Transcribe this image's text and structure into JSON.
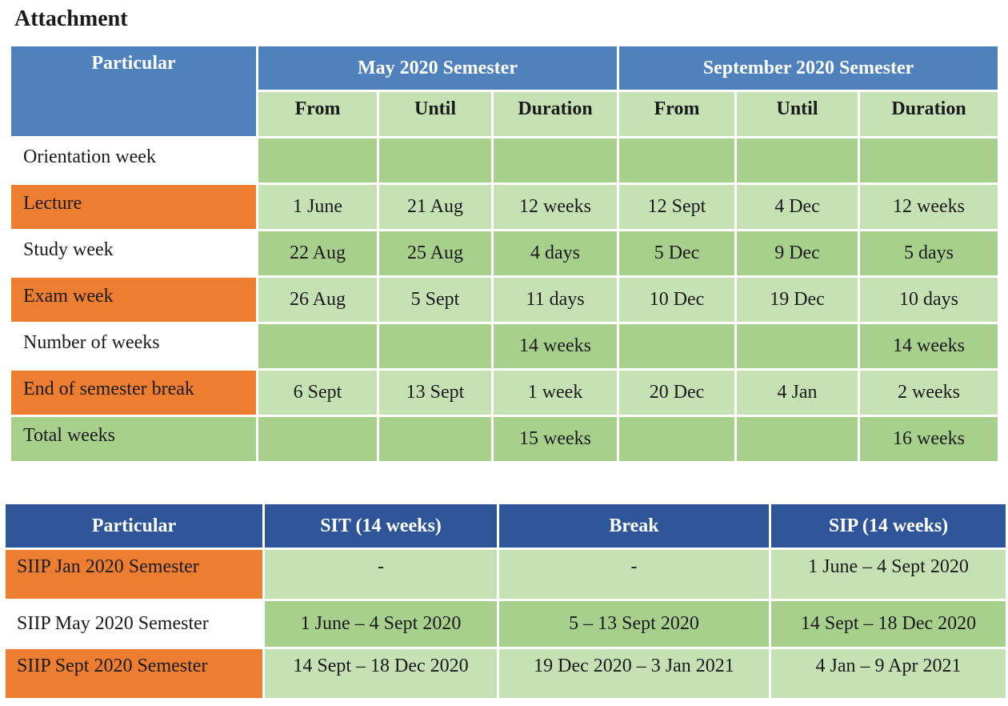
{
  "title": "Attachment",
  "table1": {
    "header": {
      "particular": "Particular",
      "may_semester": "May 2020 Semester",
      "sept_semester": "September 2020 Semester",
      "sub": [
        "From",
        "Until",
        "Duration",
        "From",
        "Until",
        "Duration"
      ]
    },
    "rows": [
      {
        "label": "Orientation week",
        "cells": [
          "",
          "",
          "",
          "",
          "",
          ""
        ]
      },
      {
        "label": "Lecture",
        "cells": [
          "1 June",
          "21 Aug",
          "12 weeks",
          "12 Sept",
          "4 Dec",
          "12 weeks"
        ]
      },
      {
        "label": "Study week",
        "cells": [
          "22 Aug",
          "25 Aug",
          "4 days",
          "5 Dec",
          "9 Dec",
          "5 days"
        ]
      },
      {
        "label": "Exam week",
        "cells": [
          "26 Aug",
          "5 Sept",
          "11 days",
          "10 Dec",
          "19 Dec",
          "10 days"
        ]
      },
      {
        "label": "Number of weeks",
        "cells": [
          "",
          "",
          "14 weeks",
          "",
          "",
          "14 weeks"
        ]
      },
      {
        "label": "End of semester break",
        "cells": [
          "6 Sept",
          "13 Sept",
          "1 week",
          "20 Dec",
          "4 Jan",
          "2 weeks"
        ]
      },
      {
        "label": "Total weeks",
        "cells": [
          "",
          "",
          "15 weeks",
          "",
          "",
          "16 weeks"
        ]
      }
    ]
  },
  "table2": {
    "header": [
      "Particular",
      "SIT (14 weeks)",
      "Break",
      "SIP (14 weeks)"
    ],
    "rows": [
      {
        "label": "SIIP Jan 2020 Semester",
        "cells": [
          "-",
          "-",
          "1 June – 4 Sept 2020"
        ]
      },
      {
        "label": "SIIP May 2020 Semester",
        "cells": [
          "1 June – 4 Sept 2020",
          "5 – 13 Sept 2020",
          "14 Sept – 18 Dec 2020"
        ]
      },
      {
        "label": "SIIP Sept 2020 Semester",
        "cells": [
          "14 Sept – 18 Dec 2020",
          "19 Dec 2020 – 3 Jan 2021",
          "4 Jan – 9 Apr 2021"
        ]
      }
    ]
  }
}
